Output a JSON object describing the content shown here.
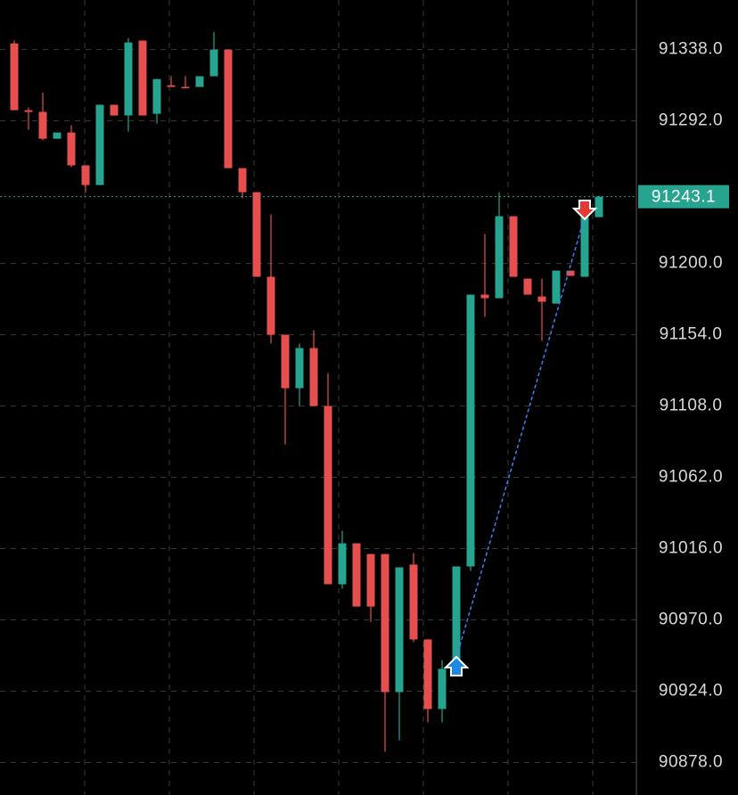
{
  "chart_data": {
    "type": "candlestick",
    "ylim": [
      90857,
      91370
    ],
    "yticks": [
      {
        "value": 91338,
        "label": "91338.0"
      },
      {
        "value": 91292,
        "label": "91292.0"
      },
      {
        "value": 91200,
        "label": "91200.0"
      },
      {
        "value": 91154,
        "label": "91154.0"
      },
      {
        "value": 91108,
        "label": "91108.0"
      },
      {
        "value": 91062,
        "label": "91062.0"
      },
      {
        "value": 91016,
        "label": "91016.0"
      },
      {
        "value": 90970,
        "label": "90970.0"
      },
      {
        "value": 90924,
        "label": "90924.0"
      },
      {
        "value": 90878,
        "label": "90878.0"
      }
    ],
    "current_price": 91243.1,
    "up_color": "#26a48f",
    "down_color": "#e5504e",
    "grid": true,
    "open": [
      91342.0,
      91298.9,
      91297.8,
      91280.5,
      91284.5,
      91263.3,
      91250.6,
      91302.4,
      91295.5,
      91343.8,
      91296.6,
      91315.0,
      91313.9,
      91313.9,
      91320.8,
      91338.0,
      91261.5,
      91246.0,
      91191.4,
      91154.0,
      91119.5,
      91145.4,
      91108.0,
      90993.0,
      91019.4,
      91012.5,
      91012.5,
      90923.4,
      91005.7,
      90957.4,
      90912.5,
      90938.4,
      91004.5,
      91179.9,
      91177.6,
      91230.5,
      91190.2,
      91178.7,
      91174.1,
      91195.4,
      91191.4,
      91229.9
    ],
    "high": [
      91343.8,
      91300.6,
      91310.4,
      91284.5,
      91289.1,
      91263.3,
      91302.4,
      91302.4,
      91345.5,
      91343.8,
      91319.0,
      91320.8,
      91320.8,
      91320.8,
      91349.5,
      91338.0,
      91261.5,
      91246.0,
      91231.6,
      91154.0,
      91148.3,
      91156.9,
      91129.3,
      91027.5,
      91019.4,
      91012.5,
      91012.5,
      91003.9,
      91013.1,
      90957.4,
      90944.1,
      91004.5,
      91179.9,
      91219.0,
      91246.0,
      91230.5,
      91190.2,
      91190.2,
      91195.4,
      91195.4,
      91237.4,
      91243.7
    ],
    "low": [
      91298.9,
      91286.3,
      91279.4,
      91280.5,
      91262.1,
      91246.0,
      91250.6,
      91295.5,
      91285.1,
      91295.5,
      91290.3,
      91313.9,
      91313.9,
      91313.9,
      91320.8,
      91261.5,
      91242.0,
      91191.4,
      91148.3,
      91083.3,
      91108.0,
      91108.0,
      90993.0,
      90990.1,
      90978.6,
      90968.8,
      90884.9,
      90892.4,
      90955.6,
      90903.9,
      90903.9,
      90938.4,
      91001.6,
      91165.5,
      91177.6,
      91191.4,
      91179.9,
      91150.0,
      91174.1,
      91192.0,
      91191.4,
      91229.9
    ],
    "close": [
      91298.9,
      91297.8,
      91280.5,
      91284.5,
      91263.3,
      91250.6,
      91302.4,
      91295.5,
      91342.6,
      91295.5,
      91319.0,
      91313.9,
      91313.9,
      91320.8,
      91338.0,
      91261.5,
      91246.0,
      91191.4,
      91154.0,
      91119.5,
      91145.4,
      91108.0,
      90993.0,
      91019.4,
      90978.6,
      90978.6,
      90923.4,
      91003.9,
      90957.4,
      90912.5,
      90938.4,
      91004.5,
      91179.9,
      91177.6,
      91230.5,
      91191.4,
      91179.9,
      91175.3,
      91195.4,
      91192.0,
      91229.9,
      91243.1
    ]
  }
}
